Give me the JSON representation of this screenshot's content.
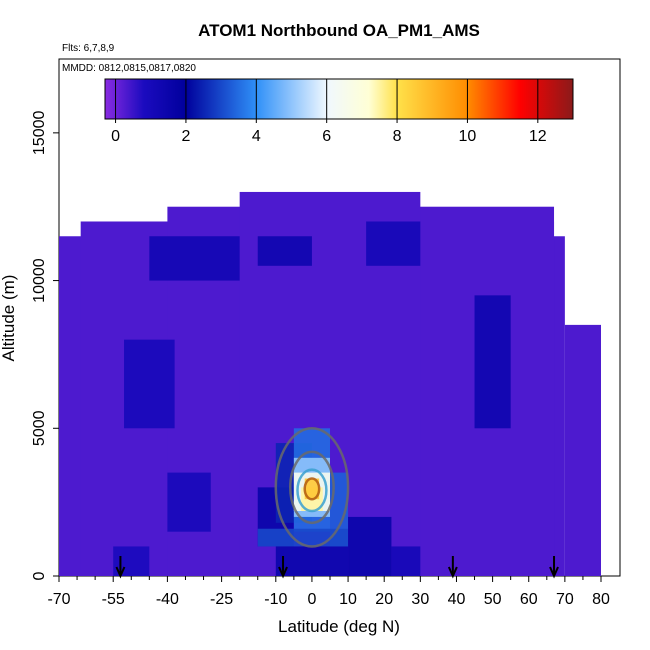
{
  "chart_data": {
    "type": "heatmap",
    "title": "ATOM1 Northbound OA_PM1_AMS",
    "notes": [
      "Flts: 6,7,8,9",
      "MMDD: 0812,0815,0817,0820"
    ],
    "xlabel": "Latitude (deg N)",
    "ylabel": "Altitude (m)",
    "xlim": [
      -70,
      80
    ],
    "ylim": [
      0,
      17500
    ],
    "x_ticks": [
      -70,
      -55,
      -40,
      -25,
      -10,
      0,
      10,
      20,
      30,
      40,
      50,
      60,
      70,
      80
    ],
    "x_tick_labels": [
      "-70",
      "-55",
      "-40",
      "-25",
      "-10",
      "0",
      "10",
      "20",
      "30",
      "40",
      "50",
      "60",
      "70",
      "80"
    ],
    "y_ticks": [
      0,
      5000,
      10000,
      15000
    ],
    "y_tick_labels": [
      "0",
      "5000",
      "10000",
      "15000"
    ],
    "colorbar": {
      "range": [
        -0.3,
        13
      ],
      "ticks": [
        0,
        2,
        4,
        6,
        8,
        10,
        12
      ],
      "tick_labels": [
        "0",
        "2",
        "4",
        "6",
        "8",
        "10",
        "12"
      ],
      "stops": [
        {
          "v": -0.3,
          "c": "#8a2be2"
        },
        {
          "v": 0.8,
          "c": "#1b0bbf"
        },
        {
          "v": 2.0,
          "c": "#00009c"
        },
        {
          "v": 4.0,
          "c": "#2f90f8"
        },
        {
          "v": 6.0,
          "c": "#f0f8ff"
        },
        {
          "v": 7.2,
          "c": "#ffffd5"
        },
        {
          "v": 8.0,
          "c": "#ffe14a"
        },
        {
          "v": 10.0,
          "c": "#ff8c00"
        },
        {
          "v": 11.5,
          "c": "#ff0000"
        },
        {
          "v": 13.0,
          "c": "#8b1a1a"
        }
      ]
    },
    "background_value": 0.3,
    "coverage": [
      {
        "lat": [
          -70,
          70
        ],
        "alt": [
          0,
          11500
        ]
      },
      {
        "lat": [
          70,
          80
        ],
        "alt": [
          0,
          8500
        ]
      },
      {
        "lat": [
          -64,
          67
        ],
        "alt": [
          0,
          12000
        ]
      },
      {
        "lat": [
          -40,
          67
        ],
        "alt": [
          0,
          12500
        ]
      },
      {
        "lat": [
          -20,
          30
        ],
        "alt": [
          0,
          13000
        ]
      }
    ],
    "cells": [
      {
        "lat": [
          -45,
          -20
        ],
        "alt": [
          10000,
          11500
        ],
        "v": 1.2
      },
      {
        "lat": [
          -15,
          0
        ],
        "alt": [
          10500,
          11500
        ],
        "v": 1.4
      },
      {
        "lat": [
          15,
          30
        ],
        "alt": [
          10500,
          12000
        ],
        "v": 1.1
      },
      {
        "lat": [
          45,
          55
        ],
        "alt": [
          5000,
          9500
        ],
        "v": 1.4
      },
      {
        "lat": [
          -52,
          -38
        ],
        "alt": [
          5000,
          8000
        ],
        "v": 1.0
      },
      {
        "lat": [
          -40,
          -28
        ],
        "alt": [
          1500,
          3500
        ],
        "v": 1.0
      },
      {
        "lat": [
          -15,
          -5
        ],
        "alt": [
          1000,
          3000
        ],
        "v": 1.6
      },
      {
        "lat": [
          -10,
          0
        ],
        "alt": [
          1800,
          4500
        ],
        "v": 2.5
      },
      {
        "lat": [
          -5,
          5
        ],
        "alt": [
          1500,
          5000
        ],
        "v": 3.5
      },
      {
        "lat": [
          -5,
          5
        ],
        "alt": [
          2000,
          4000
        ],
        "v": 5.0
      },
      {
        "lat": [
          -5,
          5
        ],
        "alt": [
          2200,
          3500
        ],
        "v": 6.5
      },
      {
        "lat": [
          -3,
          3
        ],
        "alt": [
          2200,
          3000
        ],
        "v": 7.5
      },
      {
        "lat": [
          -2,
          2
        ],
        "alt": [
          2600,
          3300
        ],
        "v": 8.6
      },
      {
        "lat": [
          5,
          10
        ],
        "alt": [
          1000,
          3500
        ],
        "v": 3.3
      },
      {
        "lat": [
          -15,
          10
        ],
        "alt": [
          1000,
          1600
        ],
        "v": 3.0
      },
      {
        "lat": [
          -10,
          10
        ],
        "alt": [
          0,
          1000
        ],
        "v": 1.5
      },
      {
        "lat": [
          10,
          22
        ],
        "alt": [
          0,
          2000
        ],
        "v": 1.6
      },
      {
        "lat": [
          22,
          30
        ],
        "alt": [
          0,
          1000
        ],
        "v": 1.1
      },
      {
        "lat": [
          -55,
          -45
        ],
        "alt": [
          0,
          1000
        ],
        "v": 0.9
      }
    ],
    "flight_dates_arrows_lat": [
      -53,
      -8,
      39,
      67
    ]
  }
}
